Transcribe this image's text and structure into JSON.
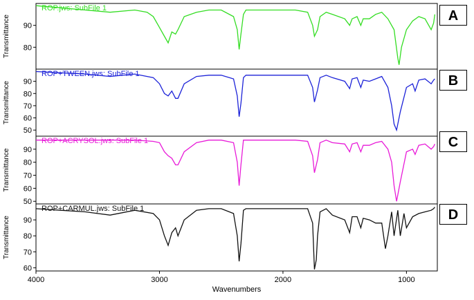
{
  "chart_data": [
    {
      "type": "line",
      "panel_label": "A",
      "title": "ROP.jws: SubFile 1",
      "ylabel": "Transmittance",
      "yticks": [
        80,
        90
      ],
      "ylim": [
        70,
        100
      ],
      "color": "#33dd22",
      "x": [
        4000,
        3800,
        3600,
        3400,
        3200,
        3100,
        3050,
        3000,
        2960,
        2930,
        2900,
        2870,
        2850,
        2800,
        2700,
        2600,
        2500,
        2400,
        2370,
        2355,
        2340,
        2320,
        2300,
        2200,
        2000,
        1900,
        1800,
        1760,
        1745,
        1720,
        1700,
        1650,
        1600,
        1500,
        1460,
        1440,
        1400,
        1370,
        1350,
        1300,
        1250,
        1200,
        1150,
        1100,
        1070,
        1060,
        1040,
        1000,
        950,
        900,
        850,
        800,
        780,
        770
      ],
      "y": [
        99,
        98,
        97,
        96,
        97,
        96,
        94,
        89,
        85,
        82,
        87,
        86,
        88,
        94,
        96,
        97,
        97,
        94,
        88,
        79,
        86,
        95,
        97,
        97,
        97,
        97,
        96,
        90,
        85,
        88,
        94,
        96,
        95,
        93,
        90,
        93,
        94,
        90,
        93,
        93,
        95,
        96,
        93,
        88,
        75,
        72,
        80,
        88,
        92,
        94,
        93,
        88,
        91,
        95
      ]
    },
    {
      "type": "line",
      "panel_label": "B",
      "title": "ROP+TWEEN.jws: SubFile 1",
      "ylabel": "Transmittance",
      "yticks": [
        50,
        60,
        70,
        80,
        90
      ],
      "ylim": [
        45,
        100
      ],
      "color": "#1c22d8",
      "x": [
        4000,
        3800,
        3600,
        3400,
        3200,
        3050,
        3000,
        2960,
        2930,
        2900,
        2870,
        2850,
        2800,
        2700,
        2600,
        2500,
        2400,
        2370,
        2355,
        2340,
        2320,
        2300,
        2200,
        2000,
        1900,
        1800,
        1760,
        1745,
        1720,
        1700,
        1650,
        1600,
        1500,
        1460,
        1440,
        1400,
        1370,
        1350,
        1300,
        1250,
        1200,
        1150,
        1120,
        1100,
        1080,
        1050,
        1000,
        950,
        930,
        900,
        850,
        800,
        780,
        770
      ],
      "y": [
        98,
        97,
        96,
        94,
        96,
        93,
        88,
        80,
        78,
        82,
        76,
        76,
        88,
        94,
        95,
        95,
        92,
        78,
        61,
        72,
        93,
        95,
        95,
        95,
        95,
        95,
        85,
        73,
        83,
        93,
        95,
        93,
        90,
        84,
        92,
        93,
        85,
        91,
        90,
        92,
        94,
        85,
        70,
        55,
        50,
        65,
        85,
        88,
        82,
        91,
        92,
        88,
        91,
        92
      ]
    },
    {
      "type": "line",
      "panel_label": "C",
      "title": "ROP+ACRYSOL.jws: SubFile 1",
      "ylabel": "Transmittance",
      "yticks": [
        50,
        60,
        70,
        80,
        90
      ],
      "ylim": [
        48,
        100
      ],
      "color": "#e81ad8",
      "x": [
        4000,
        3800,
        3600,
        3400,
        3200,
        3050,
        3000,
        2960,
        2930,
        2900,
        2870,
        2850,
        2800,
        2700,
        2600,
        2500,
        2400,
        2370,
        2355,
        2340,
        2320,
        2300,
        2200,
        2000,
        1900,
        1800,
        1760,
        1745,
        1720,
        1700,
        1650,
        1600,
        1500,
        1460,
        1440,
        1400,
        1370,
        1350,
        1300,
        1250,
        1200,
        1150,
        1120,
        1100,
        1080,
        1050,
        1000,
        950,
        930,
        900,
        850,
        800,
        780,
        770
      ],
      "y": [
        97,
        97,
        97,
        97,
        97,
        96,
        95,
        88,
        85,
        83,
        78,
        78,
        88,
        95,
        97,
        97,
        95,
        80,
        62,
        78,
        97,
        97,
        97,
        97,
        97,
        96,
        85,
        72,
        82,
        95,
        97,
        95,
        94,
        88,
        94,
        95,
        88,
        93,
        93,
        95,
        96,
        90,
        80,
        62,
        50,
        65,
        88,
        90,
        86,
        93,
        94,
        90,
        92,
        94
      ]
    },
    {
      "type": "line",
      "panel_label": "D",
      "title": "ROP+CARMUL.jws: SubFile 1",
      "ylabel": "Transmittance",
      "yticks": [
        60,
        70,
        80,
        90
      ],
      "ylim": [
        58,
        100
      ],
      "color": "#111111",
      "x": [
        4000,
        3800,
        3600,
        3400,
        3200,
        3050,
        3000,
        2960,
        2930,
        2900,
        2870,
        2850,
        2800,
        2700,
        2600,
        2500,
        2400,
        2370,
        2355,
        2340,
        2320,
        2300,
        2200,
        2000,
        1900,
        1800,
        1760,
        1745,
        1730,
        1720,
        1700,
        1650,
        1600,
        1500,
        1460,
        1440,
        1400,
        1370,
        1350,
        1300,
        1250,
        1200,
        1170,
        1150,
        1120,
        1100,
        1070,
        1050,
        1020,
        1000,
        950,
        900,
        850,
        800,
        780,
        770
      ],
      "y": [
        97,
        96,
        95,
        93,
        96,
        94,
        90,
        80,
        74,
        82,
        85,
        80,
        90,
        96,
        97,
        97,
        94,
        80,
        64,
        75,
        96,
        97,
        97,
        97,
        97,
        97,
        88,
        59,
        65,
        80,
        95,
        97,
        93,
        90,
        82,
        92,
        92,
        85,
        91,
        90,
        88,
        88,
        72,
        80,
        95,
        80,
        96,
        80,
        94,
        85,
        92,
        94,
        95,
        96,
        97,
        98
      ]
    }
  ],
  "xaxis": {
    "label": "Wavenumbers",
    "ticks": [
      4000,
      3000,
      2000,
      1000
    ],
    "xlim": [
      4000,
      750
    ]
  }
}
